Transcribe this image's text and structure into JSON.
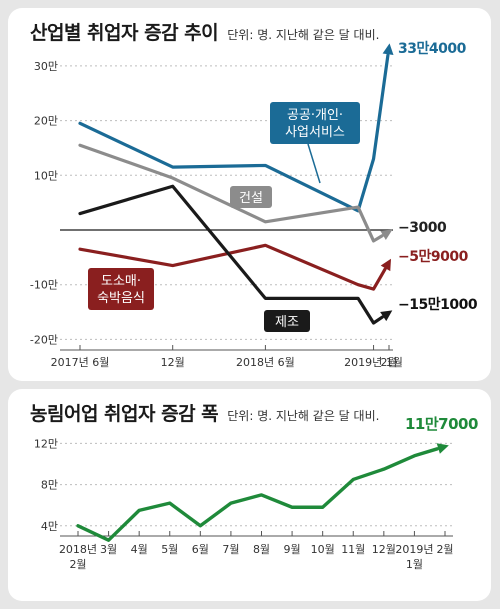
{
  "chart_data": [
    {
      "type": "line",
      "title": "산업별 취업자 증감 추이",
      "unit_note": "단위: 명. 지난해 같은 달 대비.",
      "yticks": [
        {
          "value": 300000,
          "label": "30만"
        },
        {
          "value": 200000,
          "label": "20만"
        },
        {
          "value": 100000,
          "label": "10만"
        },
        {
          "value": -100000,
          "label": "-10만"
        },
        {
          "value": -200000,
          "label": "-20만"
        }
      ],
      "ylim": [
        -200000,
        310000
      ],
      "x_ticks": [
        {
          "index": 0,
          "label": "2017년 6월"
        },
        {
          "index": 6,
          "label": "12월"
        },
        {
          "index": 12,
          "label": "2018년 6월"
        },
        {
          "index": 19,
          "label": "2019년 1월"
        },
        {
          "index": 20,
          "label": "2월"
        }
      ],
      "x_count": 21,
      "series": [
        {
          "name": "공공·개인·사업서비스",
          "color": "#1b6b96",
          "points": [
            [
              0,
              195000
            ],
            [
              6,
              115000
            ],
            [
              12,
              118000
            ],
            [
              18,
              35000
            ],
            [
              19,
              130000
            ],
            [
              20,
              334000
            ]
          ],
          "end_label": "33만4000"
        },
        {
          "name": "건설",
          "color": "#8c8c8c",
          "points": [
            [
              0,
              155000
            ],
            [
              6,
              95000
            ],
            [
              12,
              15000
            ],
            [
              18,
              42000
            ],
            [
              19,
              -20000
            ],
            [
              20,
              -3000
            ]
          ],
          "end_label": "−3000"
        },
        {
          "name": "도소매·숙박음식",
          "color": "#8a1f1f",
          "points": [
            [
              0,
              -35000
            ],
            [
              6,
              -65000
            ],
            [
              12,
              -28000
            ],
            [
              18,
              -100000
            ],
            [
              19,
              -108000
            ],
            [
              20,
              -59000
            ]
          ],
          "end_label": "−5만9000"
        },
        {
          "name": "제조",
          "color": "#1a1a1a",
          "points": [
            [
              0,
              30000
            ],
            [
              6,
              80000
            ],
            [
              12,
              -125000
            ],
            [
              18,
              -125000
            ],
            [
              19,
              -170000
            ],
            [
              20,
              -151000
            ]
          ],
          "end_label": "−15만1000"
        }
      ]
    },
    {
      "type": "line",
      "title": "농림어업 취업자 증감 폭",
      "unit_note": "단위: 명. 지난해 같은 달 대비.",
      "yticks": [
        {
          "value": 40000,
          "label": "4만"
        },
        {
          "value": 80000,
          "label": "8만"
        },
        {
          "value": 120000,
          "label": "12만"
        }
      ],
      "ylim": [
        0,
        125000
      ],
      "categories": [
        "2018년\n2월",
        "3월",
        "4월",
        "5월",
        "6월",
        "7월",
        "8월",
        "9월",
        "10월",
        "11월",
        "12월",
        "2019년\n1월",
        "2월"
      ],
      "series": [
        {
          "name": "농림어업",
          "color": "#1f8a3a",
          "values": [
            40000,
            26000,
            55000,
            62000,
            40000,
            62000,
            70000,
            58000,
            58000,
            85000,
            95000,
            108000,
            117000
          ],
          "end_label": "11만7000"
        }
      ]
    }
  ]
}
